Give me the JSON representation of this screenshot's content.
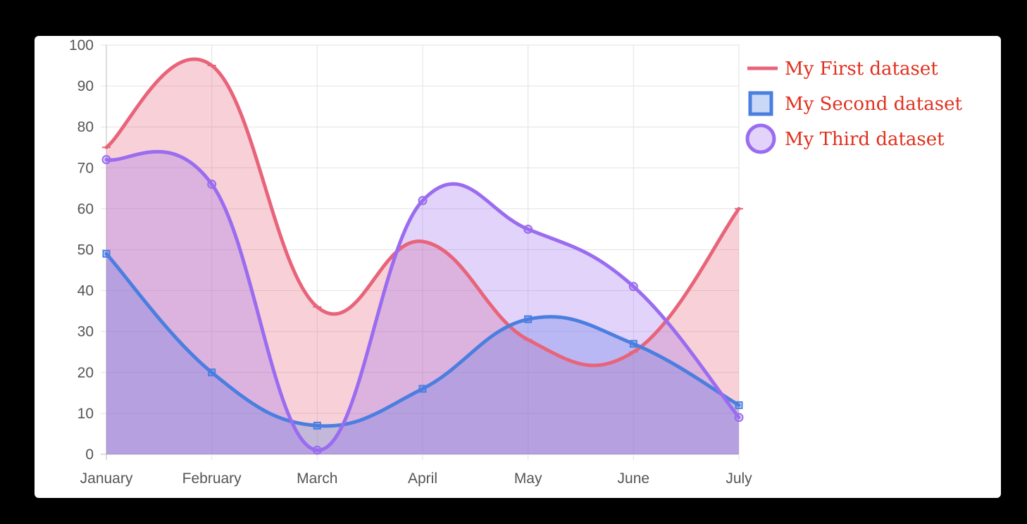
{
  "chart_data": {
    "type": "area",
    "categories": [
      "January",
      "February",
      "March",
      "April",
      "May",
      "June",
      "July"
    ],
    "ylim": [
      0,
      100
    ],
    "y_ticks": [
      0,
      10,
      20,
      30,
      40,
      50,
      60,
      70,
      80,
      90,
      100
    ],
    "grid": true,
    "legend_position": "right",
    "series": [
      {
        "name": "My First dataset",
        "values": [
          75,
          95,
          36,
          52,
          28,
          25,
          60
        ],
        "color": "#e8647a",
        "fill": "rgba(232,100,122,0.30)",
        "point_style": "line"
      },
      {
        "name": "My Second dataset",
        "values": [
          49,
          20,
          7,
          16,
          33,
          27,
          12
        ],
        "color": "#4a7fe0",
        "fill": "rgba(74,127,224,0.30)",
        "point_style": "rect"
      },
      {
        "name": "My Third dataset",
        "values": [
          72,
          66,
          1,
          62,
          55,
          41,
          9
        ],
        "color": "#9a6cf0",
        "fill": "rgba(154,108,240,0.30)",
        "point_style": "circle"
      }
    ]
  }
}
